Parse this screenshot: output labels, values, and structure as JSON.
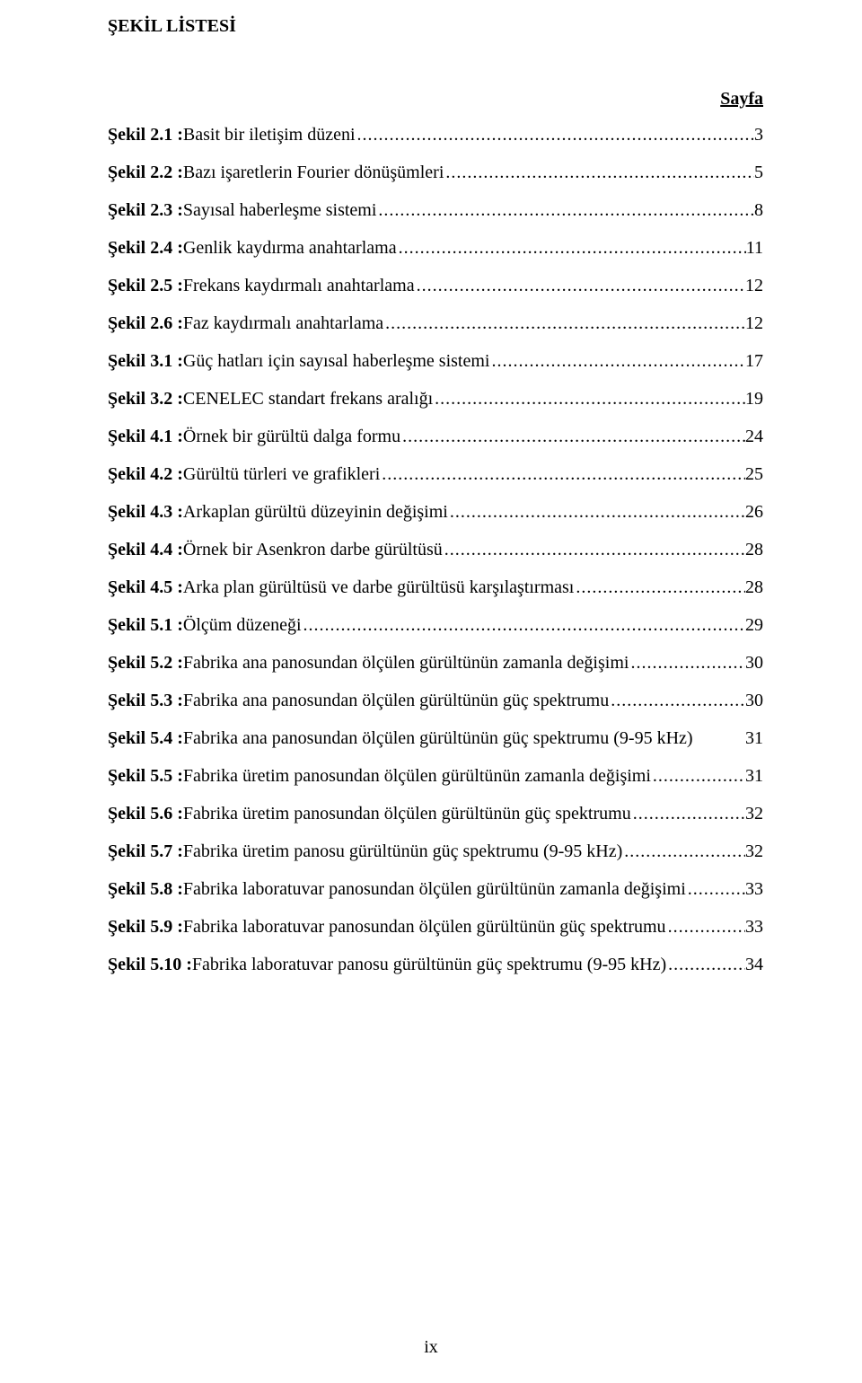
{
  "heading": "ŞEKİL LİSTESİ",
  "page_label": "Sayfa",
  "footer": "ix",
  "entries": [
    {
      "label": "Şekil 2.1 : ",
      "title": "Basit bir iletişim düzeni",
      "page": "3",
      "dots": true
    },
    {
      "label": "Şekil 2.2 : ",
      "title": "Bazı işaretlerin Fourier dönüşümleri",
      "page": "5",
      "dots": true
    },
    {
      "label": "Şekil 2.3 : ",
      "title": "Sayısal haberleşme sistemi",
      "page": "8",
      "dots": true
    },
    {
      "label": "Şekil 2.4 : ",
      "title": "Genlik kaydırma anahtarlama",
      "page": "11",
      "dots": true
    },
    {
      "label": "Şekil 2.5 : ",
      "title": "Frekans kaydırmalı anahtarlama",
      "page": "12",
      "dots": true
    },
    {
      "label": "Şekil 2.6 : ",
      "title": "Faz kaydırmalı anahtarlama",
      "page": "12",
      "dots": true
    },
    {
      "label": "Şekil 3.1 : ",
      "title": "Güç hatları için sayısal haberleşme sistemi",
      "page": "17",
      "dots": true
    },
    {
      "label": "Şekil 3.2 : ",
      "title": "CENELEC  standart frekans aralığı",
      "page": "19",
      "dots": true
    },
    {
      "label": "Şekil 4.1 : ",
      "title": "Örnek bir gürültü dalga formu",
      "page": "24",
      "dots": true
    },
    {
      "label": "Şekil 4.2 : ",
      "title": "Gürültü türleri ve grafikleri",
      "page": "25",
      "dots": true
    },
    {
      "label": "Şekil 4.3 : ",
      "title": "Arkaplan gürültü düzeyinin değişimi",
      "page": "26",
      "dots": true
    },
    {
      "label": "Şekil 4.4 : ",
      "title": "Örnek bir Asenkron darbe gürültüsü",
      "page": "28",
      "dots": true
    },
    {
      "label": "Şekil 4.5 : ",
      "title": "Arka plan gürültüsü ve darbe gürültüsü karşılaştırması",
      "page": "28",
      "dots": true
    },
    {
      "label": "Şekil 5.1 : ",
      "title": "Ölçüm düzeneği",
      "page": "29",
      "dots": true
    },
    {
      "label": "Şekil 5.2 : ",
      "title": "Fabrika ana panosundan ölçülen gürültünün zamanla değişimi",
      "page": "30",
      "dots": true
    },
    {
      "label": "Şekil 5.3 : ",
      "title": "Fabrika ana panosundan ölçülen gürültünün güç spektrumu",
      "page": "30",
      "dots": true
    },
    {
      "label": "Şekil 5.4 : ",
      "title": "Fabrika ana panosundan ölçülen gürültünün güç spektrumu (9-95 kHz) ",
      "page": "31",
      "dots": false
    },
    {
      "label": "Şekil 5.5 : ",
      "title": "Fabrika üretim panosundan ölçülen gürültünün zamanla değişimi",
      "page": "31",
      "dots": true
    },
    {
      "label": "Şekil 5.6 : ",
      "title": "Fabrika üretim panosundan ölçülen gürültünün güç spektrumu",
      "page": "32",
      "dots": true
    },
    {
      "label": "Şekil 5.7 : ",
      "title": "Fabrika üretim panosu gürültünün güç spektrumu (9-95 kHz)",
      "page": "32",
      "dots": true
    },
    {
      "label": "Şekil 5.8 : ",
      "title": "Fabrika laboratuvar panosundan ölçülen gürültünün zamanla değişimi",
      "page": "33",
      "dots": true
    },
    {
      "label": "Şekil 5.9 : ",
      "title": "Fabrika laboratuvar panosundan ölçülen gürültünün güç spektrumu",
      "page": "33",
      "dots": true
    },
    {
      "label": "Şekil 5.10 : ",
      "title": "Fabrika laboratuvar panosu gürültünün güç spektrumu (9-95 kHz)",
      "page": "34",
      "dots": true
    }
  ]
}
